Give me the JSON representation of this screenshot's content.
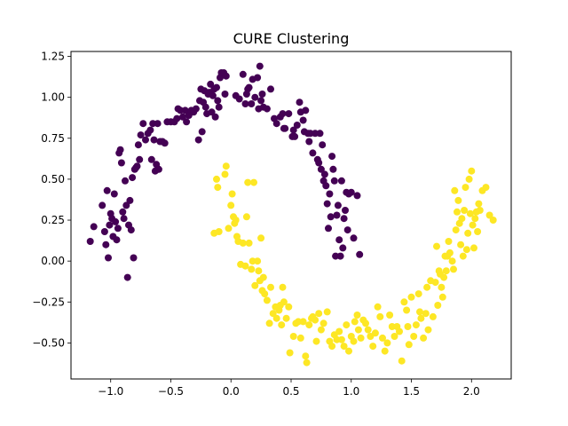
{
  "chart_data": {
    "type": "scatter",
    "title": "CURE Clustering",
    "xlabel": "",
    "ylabel": "",
    "xlim": [
      -1.33,
      2.33
    ],
    "ylim": [
      -0.72,
      1.28
    ],
    "x_ticks": [
      -1.0,
      -0.5,
      0.0,
      0.5,
      1.0,
      1.5,
      2.0
    ],
    "x_tick_labels": [
      "−1.0",
      "−0.5",
      "0.0",
      "0.5",
      "1.0",
      "1.5",
      "2.0"
    ],
    "y_ticks": [
      -0.5,
      -0.25,
      0.0,
      0.25,
      0.5,
      0.75,
      1.0,
      1.25
    ],
    "y_tick_labels": [
      "−0.50",
      "−0.25",
      "0.00",
      "0.25",
      "0.50",
      "0.75",
      "1.00",
      "1.25"
    ],
    "grid": false,
    "legend": "none",
    "series": [
      {
        "color": "#440154",
        "points": [
          [
            -1.17,
            0.12
          ],
          [
            -1.14,
            0.21
          ],
          [
            -1.07,
            0.34
          ],
          [
            -1.05,
            0.18
          ],
          [
            -1.04,
            0.1
          ],
          [
            -1.03,
            0.43
          ],
          [
            -1.02,
            0.02
          ],
          [
            -1.01,
            0.22
          ],
          [
            -1.0,
            0.29
          ],
          [
            -0.99,
            0.26
          ],
          [
            -0.98,
            0.15
          ],
          [
            -0.97,
            0.41
          ],
          [
            -0.96,
            0.24
          ],
          [
            -0.95,
            0.13
          ],
          [
            -0.94,
            0.2
          ],
          [
            -0.93,
            0.66
          ],
          [
            -0.92,
            0.68
          ],
          [
            -0.91,
            0.6
          ],
          [
            -0.9,
            0.3
          ],
          [
            -0.89,
            0.26
          ],
          [
            -0.88,
            0.49
          ],
          [
            -0.87,
            0.34
          ],
          [
            -0.86,
            -0.1
          ],
          [
            -0.85,
            0.22
          ],
          [
            -0.84,
            0.37
          ],
          [
            -0.83,
            0.19
          ],
          [
            -0.82,
            0.51
          ],
          [
            -0.81,
            0.02
          ],
          [
            -0.8,
            0.56
          ],
          [
            -0.79,
            0.57
          ],
          [
            -0.78,
            0.58
          ],
          [
            -0.77,
            0.71
          ],
          [
            -0.76,
            0.62
          ],
          [
            -0.75,
            0.77
          ],
          [
            -0.73,
            0.84
          ],
          [
            -0.71,
            0.74
          ],
          [
            -0.69,
            0.78
          ],
          [
            -0.67,
            0.8
          ],
          [
            -0.66,
            0.62
          ],
          [
            -0.65,
            0.84
          ],
          [
            -0.64,
            0.74
          ],
          [
            -0.63,
            0.55
          ],
          [
            -0.62,
            0.59
          ],
          [
            -0.61,
            0.84
          ],
          [
            -0.6,
            0.56
          ],
          [
            -0.59,
            0.73
          ],
          [
            -0.57,
            0.73
          ],
          [
            -0.55,
            0.72
          ],
          [
            -0.53,
            0.85
          ],
          [
            -0.5,
            0.85
          ],
          [
            -0.47,
            0.85
          ],
          [
            -0.45,
            0.87
          ],
          [
            -0.44,
            0.93
          ],
          [
            -0.42,
            0.92
          ],
          [
            -0.4,
            0.88
          ],
          [
            -0.38,
            0.92
          ],
          [
            -0.37,
            0.85
          ],
          [
            -0.35,
            0.89
          ],
          [
            -0.33,
            0.92
          ],
          [
            -0.31,
            0.91
          ],
          [
            -0.29,
            0.93
          ],
          [
            -0.27,
            0.74
          ],
          [
            -0.26,
            0.98
          ],
          [
            -0.25,
            1.05
          ],
          [
            -0.24,
            0.79
          ],
          [
            -0.23,
            0.97
          ],
          [
            -0.22,
            1.04
          ],
          [
            -0.21,
            0.94
          ],
          [
            -0.2,
            0.9
          ],
          [
            -0.19,
            1.02
          ],
          [
            -0.18,
            1.03
          ],
          [
            -0.17,
            1.08
          ],
          [
            -0.16,
            0.91
          ],
          [
            -0.15,
            1.01
          ],
          [
            -0.14,
            1.05
          ],
          [
            -0.13,
            0.88
          ],
          [
            -0.12,
            1.06
          ],
          [
            -0.11,
            0.98
          ],
          [
            -0.1,
            0.94
          ],
          [
            -0.09,
            1.12
          ],
          [
            -0.08,
            1.15
          ],
          [
            -0.06,
            1.15
          ],
          [
            -0.05,
            1.02
          ],
          [
            -0.04,
            1.13
          ],
          [
            0.04,
            1.01
          ],
          [
            0.07,
            0.99
          ],
          [
            0.1,
            1.14
          ],
          [
            0.12,
            0.96
          ],
          [
            0.13,
            1.02
          ],
          [
            0.14,
            1.05
          ],
          [
            0.15,
            1.06
          ],
          [
            0.17,
            0.96
          ],
          [
            0.18,
            1.11
          ],
          [
            0.2,
            1.0
          ],
          [
            0.22,
            1.12
          ],
          [
            0.23,
            0.93
          ],
          [
            0.24,
            1.19
          ],
          [
            0.25,
            0.98
          ],
          [
            0.26,
            1.02
          ],
          [
            0.27,
            0.94
          ],
          [
            0.3,
            0.93
          ],
          [
            0.33,
            1.05
          ],
          [
            0.36,
            0.87
          ],
          [
            0.38,
            0.84
          ],
          [
            0.41,
            0.88
          ],
          [
            0.43,
            0.9
          ],
          [
            0.44,
            0.81
          ],
          [
            0.45,
            0.81
          ],
          [
            0.48,
            0.9
          ],
          [
            0.51,
            0.76
          ],
          [
            0.52,
            0.8
          ],
          [
            0.53,
            0.76
          ],
          [
            0.55,
            0.83
          ],
          [
            0.57,
            0.97
          ],
          [
            0.58,
            0.91
          ],
          [
            0.6,
            0.86
          ],
          [
            0.61,
            0.79
          ],
          [
            0.62,
            0.92
          ],
          [
            0.64,
            0.78
          ],
          [
            0.65,
            0.73
          ],
          [
            0.66,
            0.78
          ],
          [
            0.68,
            0.66
          ],
          [
            0.7,
            0.78
          ],
          [
            0.72,
            0.62
          ],
          [
            0.73,
            0.6
          ],
          [
            0.74,
            0.78
          ],
          [
            0.75,
            0.56
          ],
          [
            0.76,
            0.71
          ],
          [
            0.77,
            0.49
          ],
          [
            0.78,
            0.53
          ],
          [
            0.79,
            0.46
          ],
          [
            0.8,
            0.35
          ],
          [
            0.81,
            0.2
          ],
          [
            0.82,
            0.41
          ],
          [
            0.83,
            0.27
          ],
          [
            0.84,
            0.64
          ],
          [
            0.85,
            0.56
          ],
          [
            0.86,
            0.49
          ],
          [
            0.87,
            0.03
          ],
          [
            0.88,
            0.28
          ],
          [
            0.89,
            0.34
          ],
          [
            0.9,
            0.13
          ],
          [
            0.91,
            0.03
          ],
          [
            0.92,
            0.49
          ],
          [
            0.93,
            0.08
          ],
          [
            0.94,
            0.26
          ],
          [
            0.95,
            0.31
          ],
          [
            0.96,
            0.42
          ],
          [
            0.97,
            0.19
          ],
          [
            0.98,
            0.41
          ],
          [
            1.0,
            0.42
          ],
          [
            1.02,
            0.14
          ],
          [
            1.05,
            0.4
          ],
          [
            1.07,
            0.04
          ]
        ]
      },
      {
        "color": "#fde725",
        "points": [
          [
            -0.14,
            0.17
          ],
          [
            -0.12,
            0.5
          ],
          [
            -0.11,
            0.45
          ],
          [
            -0.1,
            0.18
          ],
          [
            -0.05,
            0.53
          ],
          [
            -0.04,
            0.58
          ],
          [
            -0.02,
            0.2
          ],
          [
            0.0,
            0.34
          ],
          [
            0.01,
            0.41
          ],
          [
            0.02,
            0.27
          ],
          [
            0.03,
            0.23
          ],
          [
            0.04,
            0.25
          ],
          [
            0.05,
            0.15
          ],
          [
            0.06,
            0.12
          ],
          [
            0.08,
            -0.02
          ],
          [
            0.1,
            0.11
          ],
          [
            0.12,
            -0.03
          ],
          [
            0.13,
            0.27
          ],
          [
            0.14,
            0.48
          ],
          [
            0.15,
            0.11
          ],
          [
            0.17,
            -0.05
          ],
          [
            0.18,
            0.0
          ],
          [
            0.19,
            0.48
          ],
          [
            0.2,
            -0.15
          ],
          [
            0.22,
            0.0
          ],
          [
            0.23,
            -0.06
          ],
          [
            0.24,
            -0.12
          ],
          [
            0.25,
            0.14
          ],
          [
            0.26,
            -0.18
          ],
          [
            0.27,
            -0.1
          ],
          [
            0.28,
            -0.2
          ],
          [
            0.3,
            -0.24
          ],
          [
            0.32,
            -0.38
          ],
          [
            0.33,
            -0.16
          ],
          [
            0.35,
            -0.32
          ],
          [
            0.37,
            -0.28
          ],
          [
            0.38,
            -0.35
          ],
          [
            0.4,
            -0.3
          ],
          [
            0.41,
            -0.27
          ],
          [
            0.42,
            -0.39
          ],
          [
            0.43,
            -0.16
          ],
          [
            0.44,
            -0.25
          ],
          [
            0.46,
            -0.35
          ],
          [
            0.48,
            -0.28
          ],
          [
            0.49,
            -0.56
          ],
          [
            0.52,
            -0.46
          ],
          [
            0.54,
            -0.38
          ],
          [
            0.56,
            -0.37
          ],
          [
            0.58,
            -0.47
          ],
          [
            0.6,
            -0.37
          ],
          [
            0.62,
            -0.58
          ],
          [
            0.63,
            -0.62
          ],
          [
            0.65,
            -0.39
          ],
          [
            0.67,
            -0.35
          ],
          [
            0.68,
            -0.34
          ],
          [
            0.7,
            -0.36
          ],
          [
            0.71,
            -0.49
          ],
          [
            0.73,
            -0.32
          ],
          [
            0.75,
            -0.42
          ],
          [
            0.77,
            -0.38
          ],
          [
            0.8,
            -0.31
          ],
          [
            0.82,
            -0.49
          ],
          [
            0.84,
            -0.52
          ],
          [
            0.86,
            -0.45
          ],
          [
            0.88,
            -0.48
          ],
          [
            0.9,
            -0.43
          ],
          [
            0.92,
            -0.48
          ],
          [
            0.94,
            -0.52
          ],
          [
            0.96,
            -0.39
          ],
          [
            0.98,
            -0.55
          ],
          [
            1.0,
            -0.46
          ],
          [
            1.02,
            -0.49
          ],
          [
            1.03,
            -0.37
          ],
          [
            1.05,
            -0.33
          ],
          [
            1.06,
            -0.42
          ],
          [
            1.08,
            -0.47
          ],
          [
            1.1,
            -0.36
          ],
          [
            1.12,
            -0.38
          ],
          [
            1.14,
            -0.42
          ],
          [
            1.16,
            -0.46
          ],
          [
            1.18,
            -0.52
          ],
          [
            1.2,
            -0.44
          ],
          [
            1.22,
            -0.28
          ],
          [
            1.24,
            -0.34
          ],
          [
            1.26,
            -0.47
          ],
          [
            1.28,
            -0.55
          ],
          [
            1.3,
            -0.5
          ],
          [
            1.32,
            -0.33
          ],
          [
            1.34,
            -0.4
          ],
          [
            1.36,
            -0.46
          ],
          [
            1.38,
            -0.4
          ],
          [
            1.4,
            -0.43
          ],
          [
            1.42,
            -0.61
          ],
          [
            1.44,
            -0.25
          ],
          [
            1.46,
            -0.3
          ],
          [
            1.47,
            -0.4
          ],
          [
            1.48,
            -0.51
          ],
          [
            1.5,
            -0.22
          ],
          [
            1.52,
            -0.46
          ],
          [
            1.54,
            -0.39
          ],
          [
            1.56,
            -0.2
          ],
          [
            1.57,
            -0.31
          ],
          [
            1.58,
            -0.35
          ],
          [
            1.6,
            -0.47
          ],
          [
            1.62,
            -0.32
          ],
          [
            1.63,
            -0.16
          ],
          [
            1.64,
            -0.42
          ],
          [
            1.66,
            -0.12
          ],
          [
            1.68,
            -0.34
          ],
          [
            1.7,
            -0.13
          ],
          [
            1.71,
            0.09
          ],
          [
            1.72,
            -0.27
          ],
          [
            1.73,
            -0.06
          ],
          [
            1.74,
            -0.08
          ],
          [
            1.75,
            -0.16
          ],
          [
            1.76,
            -0.22
          ],
          [
            1.77,
            -0.1
          ],
          [
            1.78,
            0.03
          ],
          [
            1.79,
            -0.06
          ],
          [
            1.8,
            0.03
          ],
          [
            1.81,
            0.12
          ],
          [
            1.82,
            0.05
          ],
          [
            1.84,
            0.0
          ],
          [
            1.85,
            -0.05
          ],
          [
            1.86,
            0.43
          ],
          [
            1.87,
            0.19
          ],
          [
            1.88,
            0.3
          ],
          [
            1.89,
            0.37
          ],
          [
            1.9,
            0.23
          ],
          [
            1.91,
            0.1
          ],
          [
            1.92,
            0.26
          ],
          [
            1.93,
            0.03
          ],
          [
            1.94,
            0.31
          ],
          [
            1.95,
            0.45
          ],
          [
            1.96,
            0.07
          ],
          [
            1.97,
            0.17
          ],
          [
            1.98,
            0.5
          ],
          [
            1.99,
            0.29
          ],
          [
            2.0,
            0.55
          ],
          [
            2.01,
            0.22
          ],
          [
            2.02,
            0.08
          ],
          [
            2.03,
            0.26
          ],
          [
            2.04,
            0.3
          ],
          [
            2.05,
            0.18
          ],
          [
            2.06,
            0.35
          ],
          [
            2.07,
            0.31
          ],
          [
            2.09,
            0.43
          ],
          [
            2.12,
            0.45
          ],
          [
            2.15,
            0.28
          ],
          [
            2.18,
            0.25
          ]
        ]
      }
    ]
  }
}
